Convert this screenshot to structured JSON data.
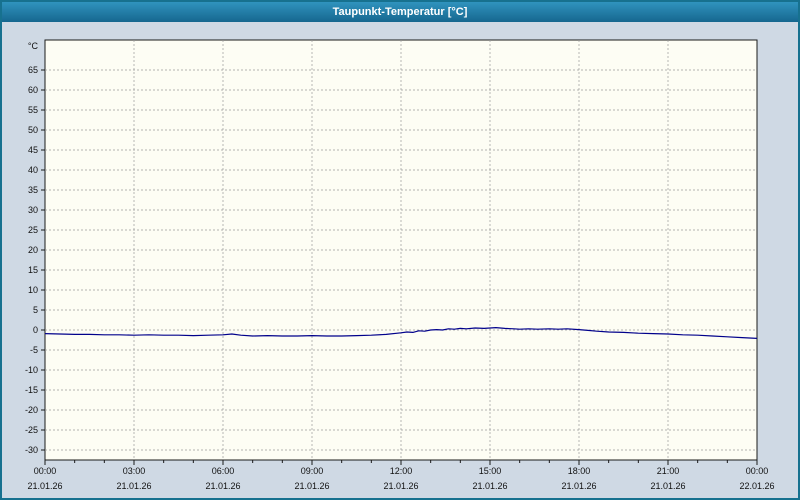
{
  "window": {
    "title": "Taupunkt-Temperatur [°C]"
  },
  "colors": {
    "titlebar_top": "#3093be",
    "titlebar_bottom": "#16678f",
    "title_text": "#ffffff",
    "window_border": "#17718f",
    "window_bg": "#cfd9e4",
    "plot_bg": "#fdfdf4",
    "grid": "#9a9a9a",
    "axis": "#1a1a1a",
    "line": "#00008b"
  },
  "chart_data": {
    "type": "line",
    "title": "Taupunkt-Temperatur [°C]",
    "xlabel": "",
    "ylabel": "°C",
    "y_axis_unit": "°C",
    "ylim": [
      -32.5,
      72.5
    ],
    "y_ticks_min": -30,
    "y_ticks_max": 65,
    "y_tick_step": 5,
    "x_range_hours": [
      0,
      24
    ],
    "x_minor_step_hours": 1,
    "grid": "dashed",
    "legend": "none",
    "x_ticks": [
      {
        "hour": 0,
        "time": "00:00",
        "date": "21.01.26"
      },
      {
        "hour": 3,
        "time": "03:00",
        "date": "21.01.26"
      },
      {
        "hour": 6,
        "time": "06:00",
        "date": "21.01.26"
      },
      {
        "hour": 9,
        "time": "09:00",
        "date": "21.01.26"
      },
      {
        "hour": 12,
        "time": "12:00",
        "date": "21.01.26"
      },
      {
        "hour": 15,
        "time": "15:00",
        "date": "21.01.26"
      },
      {
        "hour": 18,
        "time": "18:00",
        "date": "21.01.26"
      },
      {
        "hour": 21,
        "time": "21:00",
        "date": "21.01.26"
      },
      {
        "hour": 24,
        "time": "00:00",
        "date": "22.01.26"
      }
    ],
    "series": [
      {
        "name": "taupunkt-temperatur",
        "color": "#00008b",
        "points": [
          [
            0,
            -0.9
          ],
          [
            0.5,
            -1.0
          ],
          [
            1,
            -1.1
          ],
          [
            1.5,
            -1.1
          ],
          [
            2,
            -1.2
          ],
          [
            2.5,
            -1.2
          ],
          [
            3,
            -1.3
          ],
          [
            3.5,
            -1.2
          ],
          [
            4,
            -1.3
          ],
          [
            4.5,
            -1.3
          ],
          [
            5,
            -1.4
          ],
          [
            5.5,
            -1.3
          ],
          [
            6,
            -1.2
          ],
          [
            6.3,
            -1.0
          ],
          [
            6.6,
            -1.3
          ],
          [
            7,
            -1.5
          ],
          [
            7.5,
            -1.4
          ],
          [
            8,
            -1.5
          ],
          [
            8.5,
            -1.5
          ],
          [
            9,
            -1.4
          ],
          [
            9.5,
            -1.5
          ],
          [
            10,
            -1.5
          ],
          [
            10.5,
            -1.4
          ],
          [
            11,
            -1.3
          ],
          [
            11.5,
            -1.1
          ],
          [
            12,
            -0.7
          ],
          [
            12.2,
            -0.5
          ],
          [
            12.4,
            -0.6
          ],
          [
            12.6,
            -0.2
          ],
          [
            12.8,
            -0.3
          ],
          [
            13,
            0.0
          ],
          [
            13.2,
            0.1
          ],
          [
            13.4,
            0.0
          ],
          [
            13.6,
            0.3
          ],
          [
            13.8,
            0.2
          ],
          [
            14,
            0.4
          ],
          [
            14.2,
            0.3
          ],
          [
            14.5,
            0.5
          ],
          [
            14.8,
            0.4
          ],
          [
            15,
            0.5
          ],
          [
            15.2,
            0.6
          ],
          [
            15.5,
            0.4
          ],
          [
            15.8,
            0.3
          ],
          [
            16,
            0.2
          ],
          [
            16.3,
            0.3
          ],
          [
            16.6,
            0.2
          ],
          [
            17,
            0.3
          ],
          [
            17.3,
            0.2
          ],
          [
            17.6,
            0.3
          ],
          [
            18,
            0.1
          ],
          [
            18.3,
            -0.1
          ],
          [
            18.6,
            -0.3
          ],
          [
            19,
            -0.5
          ],
          [
            19.5,
            -0.6
          ],
          [
            20,
            -0.8
          ],
          [
            20.5,
            -0.9
          ],
          [
            21,
            -1.0
          ],
          [
            21.5,
            -1.2
          ],
          [
            22,
            -1.3
          ],
          [
            22.5,
            -1.5
          ],
          [
            23,
            -1.7
          ],
          [
            23.5,
            -1.9
          ],
          [
            24,
            -2.1
          ]
        ]
      }
    ]
  }
}
